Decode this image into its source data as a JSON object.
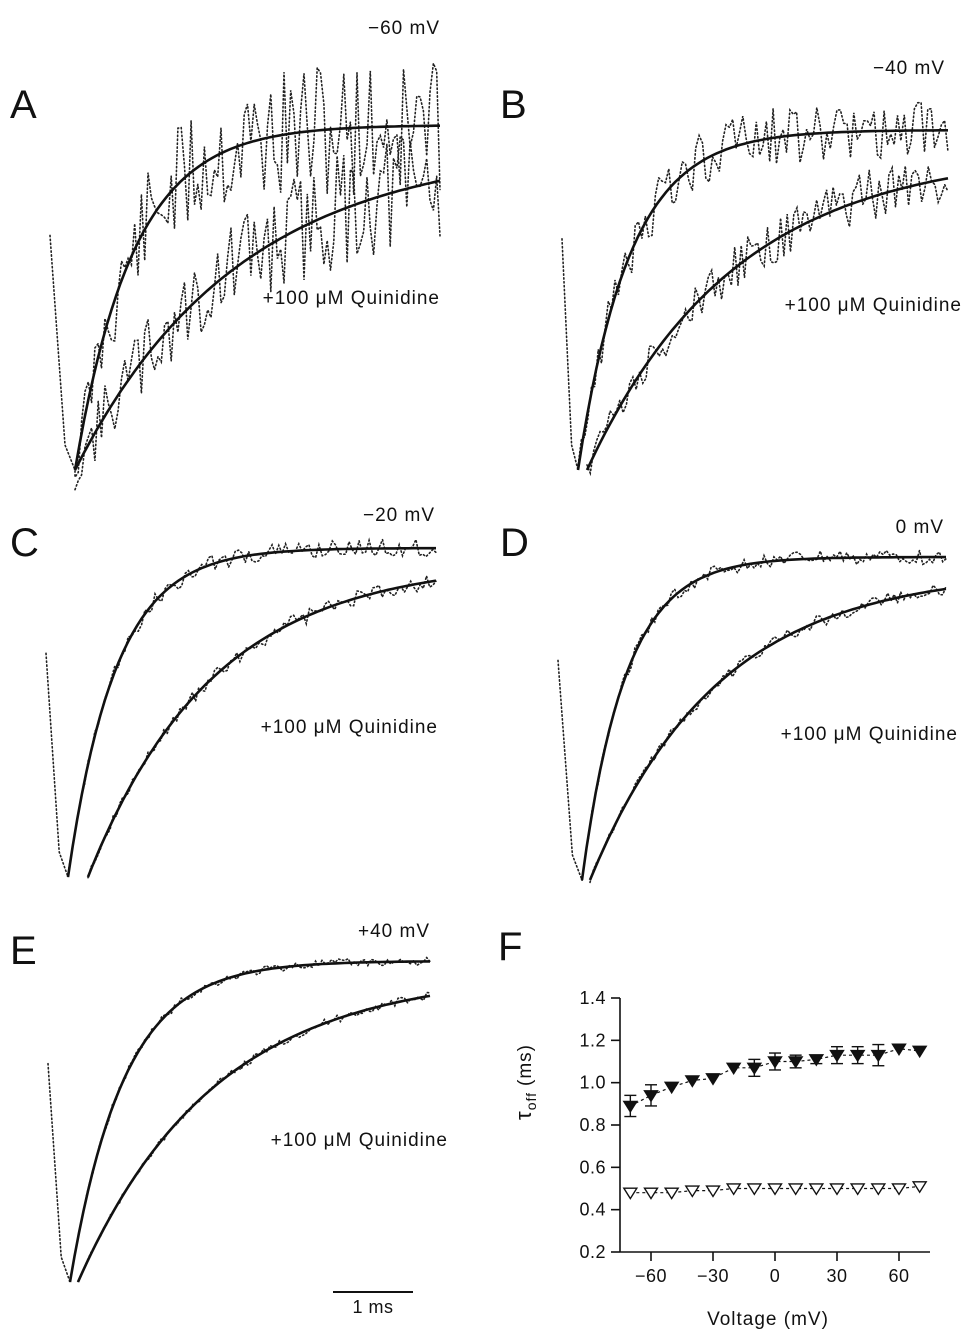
{
  "panels": [
    {
      "letter": "A",
      "voltage": "−60 mV",
      "drug": "+100 μM Quinidine",
      "noise": 0.22
    },
    {
      "letter": "B",
      "voltage": "−40 mV",
      "drug": "+100 μM Quinidine",
      "noise": 0.1
    },
    {
      "letter": "C",
      "voltage": "−20 mV",
      "drug": "+100 μM Quinidine",
      "noise": 0.03
    },
    {
      "letter": "D",
      "voltage": "0 mV",
      "drug": "+100 μM Quinidine",
      "noise": 0.025
    },
    {
      "letter": "E",
      "voltage": "+40 mV",
      "drug": "+100 μM Quinidine",
      "noise": 0.015
    }
  ],
  "scale_bar": {
    "label": "1 ms"
  },
  "panel_f": {
    "letter": "F"
  },
  "chart_data": {
    "type": "scatter",
    "xlabel": "Voltage (mV)",
    "ylabel": "τoff (ms)",
    "ylabel_main": "τ",
    "ylabel_sub": "off",
    "ylabel_unit": "(ms)",
    "xlim": [
      -75,
      75
    ],
    "ylim": [
      0.2,
      1.4
    ],
    "xticks": [
      -60,
      -30,
      0,
      30,
      60
    ],
    "xtick_labels": [
      "−60",
      "−30",
      "0",
      "30",
      "60"
    ],
    "yticks": [
      0.2,
      0.4,
      0.6,
      0.8,
      1.0,
      1.2,
      1.4
    ],
    "ytick_labels": [
      "0.2",
      "0.4",
      "0.6",
      "0.8",
      "1.0",
      "1.2",
      "1.4"
    ],
    "x": [
      -70,
      -60,
      -50,
      -40,
      -30,
      -20,
      -10,
      0,
      10,
      20,
      30,
      40,
      50,
      60,
      70
    ],
    "series": [
      {
        "marker": "filled-triangle-down",
        "values": [
          0.89,
          0.94,
          0.98,
          1.01,
          1.02,
          1.07,
          1.07,
          1.1,
          1.1,
          1.11,
          1.13,
          1.13,
          1.13,
          1.16,
          1.15
        ],
        "errors": [
          0.05,
          0.05,
          0.0,
          0.0,
          0.0,
          0.0,
          0.04,
          0.04,
          0.03,
          0.02,
          0.04,
          0.04,
          0.05,
          0.0,
          0.0
        ]
      },
      {
        "marker": "open-triangle-down",
        "values": [
          0.48,
          0.48,
          0.48,
          0.49,
          0.49,
          0.5,
          0.5,
          0.5,
          0.5,
          0.5,
          0.5,
          0.5,
          0.5,
          0.5,
          0.51
        ],
        "errors": [
          0,
          0,
          0,
          0,
          0,
          0,
          0,
          0,
          0,
          0,
          0,
          0,
          0,
          0,
          0
        ]
      }
    ]
  }
}
